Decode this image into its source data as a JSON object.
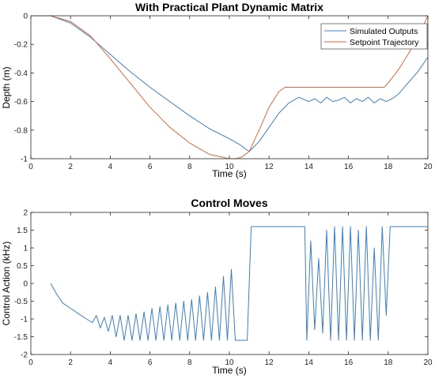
{
  "chart_data": [
    {
      "type": "line",
      "title": "With Practical Plant Dynamic Matrix",
      "xlabel": "Time (s)",
      "ylabel": "Depth (m)",
      "xlim": [
        0,
        20
      ],
      "ylim": [
        -1,
        0
      ],
      "xticks": [
        "0",
        "2",
        "4",
        "6",
        "8",
        "10",
        "12",
        "14",
        "16",
        "18",
        "20"
      ],
      "yticks": [
        "0",
        "-0.2",
        "-0.4",
        "-0.6",
        "-0.8",
        "-1"
      ],
      "grid": false,
      "legend_position": "top-right",
      "series": [
        {
          "name": "Simulated Outputs",
          "color": "#3c7fc0",
          "x": [
            0,
            1,
            2,
            3,
            4,
            5,
            6,
            7,
            8,
            9,
            10,
            10.5,
            11,
            11.5,
            12,
            12.5,
            13,
            13.5,
            14,
            14.3,
            14.6,
            14.9,
            15.2,
            15.5,
            15.8,
            16.1,
            16.4,
            16.7,
            17,
            17.3,
            17.6,
            17.9,
            18.2,
            18.5,
            19,
            19.5,
            20
          ],
          "y": [
            0,
            0,
            -0.05,
            -0.15,
            -0.27,
            -0.39,
            -0.5,
            -0.6,
            -0.7,
            -0.79,
            -0.86,
            -0.9,
            -0.95,
            -0.88,
            -0.78,
            -0.68,
            -0.61,
            -0.57,
            -0.6,
            -0.58,
            -0.61,
            -0.57,
            -0.6,
            -0.59,
            -0.57,
            -0.61,
            -0.58,
            -0.6,
            -0.57,
            -0.61,
            -0.58,
            -0.6,
            -0.58,
            -0.55,
            -0.47,
            -0.39,
            -0.29
          ]
        },
        {
          "name": "Setpoint Trajectory",
          "color": "#d9693a",
          "x": [
            0,
            1,
            2,
            3,
            4,
            5,
            6,
            7,
            8,
            9,
            10,
            10.3,
            10.6,
            11,
            11.5,
            12,
            12.5,
            12.8,
            14,
            16,
            17.5,
            17.8,
            18,
            18.5,
            19,
            19.5,
            19.9,
            20
          ],
          "y": [
            0,
            0,
            -0.04,
            -0.14,
            -0.3,
            -0.47,
            -0.64,
            -0.78,
            -0.89,
            -0.97,
            -1,
            -1,
            -0.99,
            -0.95,
            -0.8,
            -0.64,
            -0.53,
            -0.5,
            -0.5,
            -0.5,
            -0.5,
            -0.5,
            -0.47,
            -0.38,
            -0.27,
            -0.15,
            -0.03,
            0
          ]
        }
      ]
    },
    {
      "type": "line",
      "title": "Control Moves",
      "xlabel": "Time (s)",
      "ylabel": "Control Action (kHz)",
      "xlim": [
        0,
        20
      ],
      "ylim": [
        -2,
        2
      ],
      "xticks": [
        "0",
        "2",
        "4",
        "6",
        "8",
        "10",
        "12",
        "14",
        "16",
        "18",
        "20"
      ],
      "yticks": [
        "2",
        "1.5",
        "1",
        "0.5",
        "0",
        "-0.5",
        "-1",
        "-1.5",
        "-2"
      ],
      "grid": false,
      "series": [
        {
          "color": "#3c7fc0",
          "x": [
            1,
            1.3,
            1.6,
            2,
            2.4,
            2.8,
            3.1,
            3.3,
            3.5,
            3.7,
            3.9,
            4.1,
            4.3,
            4.5,
            4.7,
            4.9,
            5.1,
            5.3,
            5.5,
            5.7,
            5.9,
            6.1,
            6.3,
            6.5,
            6.7,
            6.9,
            7.1,
            7.3,
            7.5,
            7.7,
            7.9,
            8.1,
            8.3,
            8.5,
            8.7,
            8.9,
            9.1,
            9.3,
            9.5,
            9.7,
            9.9,
            10.1,
            10.3,
            10.5,
            10.7,
            10.9,
            11.1,
            11.5,
            12,
            13,
            13.8,
            13.9,
            14.1,
            14.3,
            14.5,
            14.7,
            14.9,
            15.1,
            15.3,
            15.5,
            15.7,
            15.9,
            16.1,
            16.3,
            16.5,
            16.7,
            16.9,
            17.1,
            17.3,
            17.5,
            17.7,
            17.9,
            18.1,
            19,
            20
          ],
          "y": [
            0,
            -0.3,
            -0.55,
            -0.7,
            -0.85,
            -1.0,
            -1.1,
            -0.9,
            -1.25,
            -0.95,
            -1.35,
            -0.9,
            -1.5,
            -0.9,
            -1.6,
            -0.9,
            -1.6,
            -0.85,
            -1.6,
            -0.8,
            -1.6,
            -0.7,
            -1.6,
            -0.65,
            -1.6,
            -0.6,
            -1.6,
            -0.55,
            -1.6,
            -0.5,
            -1.6,
            -0.45,
            -1.6,
            -0.35,
            -1.6,
            -0.25,
            -1.6,
            -0.1,
            -1.6,
            0.2,
            -1.6,
            0.4,
            -1.6,
            -1.6,
            -1.6,
            -1.6,
            1.6,
            1.6,
            1.6,
            1.6,
            1.6,
            -1.6,
            1.2,
            -1.3,
            0.7,
            -1.4,
            1.5,
            -1.6,
            1.6,
            -1.6,
            1.6,
            -1.6,
            1.6,
            -1.6,
            1.5,
            -1.6,
            1.6,
            -1.6,
            1.0,
            -1.6,
            1.6,
            -0.9,
            1.6,
            1.6,
            1.6
          ]
        }
      ]
    }
  ]
}
